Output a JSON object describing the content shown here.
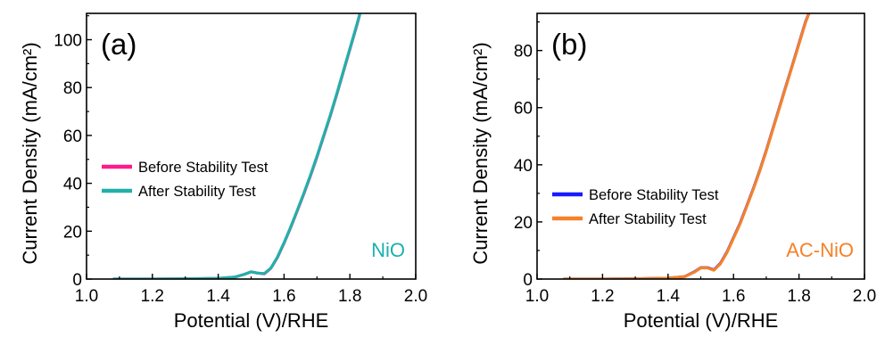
{
  "chart_data": [
    {
      "type": "line",
      "panel_label": "(a)",
      "annotation": "NiO",
      "annotation_color": "#1ab0ad",
      "xlabel": "Potential (V)/RHE",
      "ylabel": "Current Density (mA/cm²)",
      "xlim": [
        1.0,
        2.0
      ],
      "ylim": [
        0,
        111
      ],
      "xticks": [
        "1.0",
        "1.2",
        "1.4",
        "1.6",
        "1.8",
        "2.0"
      ],
      "yticks": [
        "0",
        "20",
        "40",
        "60",
        "80",
        "100"
      ],
      "legend_position": "center-left",
      "series": [
        {
          "name": "Before Stability Test",
          "color": "#ff1a8c",
          "x": [
            1.08,
            1.2,
            1.3,
            1.4,
            1.45,
            1.48,
            1.5,
            1.52,
            1.54,
            1.56,
            1.58,
            1.6,
            1.62,
            1.64,
            1.66,
            1.68,
            1.7,
            1.72,
            1.74,
            1.76,
            1.78,
            1.8,
            1.82,
            1.83
          ],
          "y": [
            0,
            0,
            0.1,
            0.3,
            0.8,
            2.0,
            3.0,
            2.5,
            2.2,
            4.5,
            9.0,
            15.0,
            21.5,
            28.5,
            35.5,
            43.0,
            51.0,
            59.5,
            68.0,
            77.0,
            86.5,
            96.0,
            105.5,
            110.5
          ]
        },
        {
          "name": "After Stability Test",
          "color": "#22b0aa",
          "x": [
            1.08,
            1.2,
            1.3,
            1.4,
            1.45,
            1.48,
            1.5,
            1.52,
            1.54,
            1.56,
            1.58,
            1.6,
            1.62,
            1.64,
            1.66,
            1.68,
            1.7,
            1.72,
            1.74,
            1.76,
            1.78,
            1.8,
            1.82,
            1.83
          ],
          "y": [
            0,
            0,
            0.1,
            0.3,
            0.8,
            2.0,
            3.0,
            2.5,
            2.3,
            4.6,
            9.2,
            15.2,
            21.7,
            28.7,
            35.8,
            43.3,
            51.3,
            59.8,
            68.3,
            77.3,
            86.8,
            96.3,
            105.8,
            110.8
          ]
        }
      ]
    },
    {
      "type": "line",
      "panel_label": "(b)",
      "annotation": "AC-NiO",
      "annotation_color": "#f5812a",
      "xlabel": "Potential (V)/RHE",
      "ylabel": "Current Density (mA/cm²)",
      "xlim": [
        1.0,
        2.0
      ],
      "ylim": [
        0,
        93
      ],
      "xticks": [
        "1.0",
        "1.2",
        "1.4",
        "1.6",
        "1.8",
        "2.0"
      ],
      "yticks": [
        "0",
        "20",
        "40",
        "60",
        "80"
      ],
      "legend_position": "center-left",
      "series": [
        {
          "name": "Before Stability Test",
          "color": "#1a1aff",
          "x": [
            1.08,
            1.2,
            1.3,
            1.4,
            1.45,
            1.48,
            1.5,
            1.52,
            1.54,
            1.56,
            1.58,
            1.6,
            1.62,
            1.64,
            1.66,
            1.68,
            1.7,
            1.72,
            1.74,
            1.76,
            1.78,
            1.8,
            1.82,
            1.83
          ],
          "y": [
            0,
            0,
            0.1,
            0.3,
            0.8,
            2.5,
            4.0,
            4.0,
            3.2,
            5.5,
            9.5,
            14.5,
            19.5,
            25.5,
            31.5,
            38.0,
            45.0,
            52.5,
            60.0,
            67.5,
            75.0,
            82.5,
            90.0,
            93.0
          ]
        },
        {
          "name": "After Stability Test",
          "color": "#f5812a",
          "x": [
            1.08,
            1.2,
            1.3,
            1.4,
            1.45,
            1.48,
            1.5,
            1.52,
            1.54,
            1.56,
            1.58,
            1.6,
            1.62,
            1.64,
            1.66,
            1.68,
            1.7,
            1.72,
            1.74,
            1.76,
            1.78,
            1.8,
            1.82,
            1.83
          ],
          "y": [
            0,
            0,
            0.1,
            0.3,
            0.8,
            2.4,
            3.9,
            3.9,
            3.1,
            5.3,
            9.3,
            14.3,
            19.3,
            25.3,
            31.3,
            37.8,
            44.8,
            52.3,
            59.8,
            67.3,
            74.8,
            82.3,
            89.8,
            92.8
          ]
        }
      ]
    }
  ]
}
